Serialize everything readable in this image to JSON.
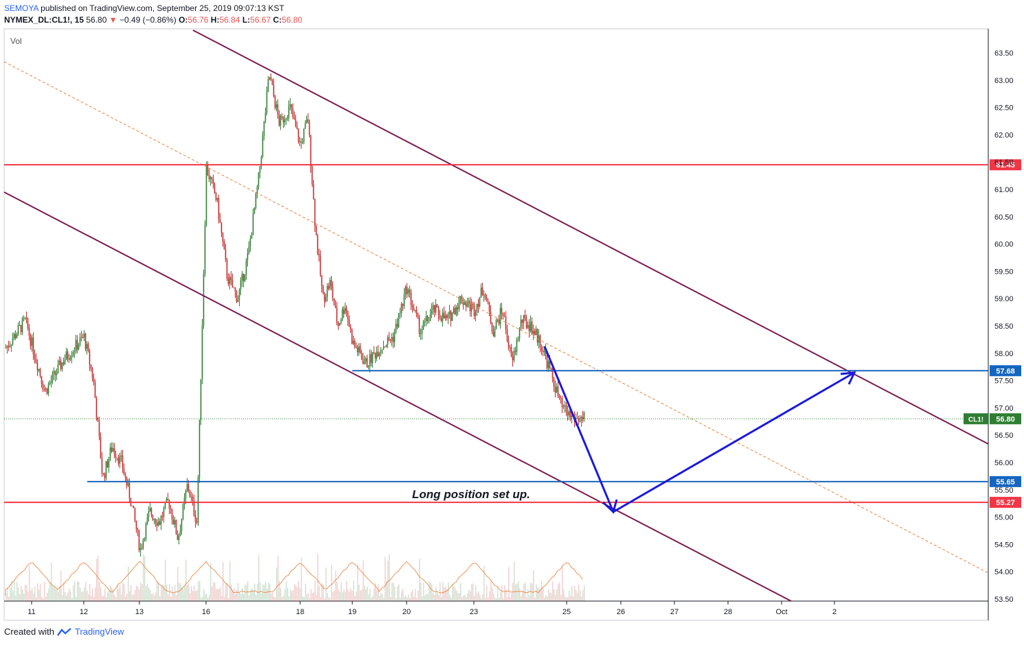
{
  "header": {
    "author": "SEMOYA",
    "published_text": "published on TradingView.com, September 25, 2019 09:07:13 KST",
    "symbol": "NYMEX_DL:CL1!, 15",
    "last": "56.80",
    "change": "−0.49 (−0.86%)",
    "ohlc": {
      "o_label": "O:",
      "o": "56.76",
      "h_label": "H:",
      "h": "56.84",
      "l_label": "L:",
      "l": "56.67",
      "c_label": "C:",
      "c": "56.80"
    }
  },
  "footer": {
    "created_with": "Created with",
    "brand": "TradingView",
    "logo_icon": "tradingview-logo-icon"
  },
  "colors": {
    "channel": "#7b1a4f",
    "support_red": "#f23645",
    "support_blue": "#1565c0",
    "arrow": "#1a1adc",
    "midline": "#e8813b",
    "last_price": "#2e7d32",
    "up": "#2e7d32",
    "down": "#c62828"
  },
  "chart_data": {
    "type": "candlestick",
    "volume_label": "Vol",
    "y_range": [
      53.5,
      63.75
    ],
    "y_ticks": [
      "53.50",
      "54.00",
      "54.50",
      "55.00",
      "55.50",
      "56.00",
      "56.50",
      "57.00",
      "57.50",
      "58.00",
      "58.50",
      "59.00",
      "59.50",
      "60.00",
      "60.50",
      "61.00",
      "61.50",
      "62.00",
      "62.50",
      "63.00",
      "63.50"
    ],
    "x_ticks": [
      "11",
      "12",
      "13",
      "16",
      "18",
      "19",
      "20",
      "23",
      "25",
      "26",
      "27",
      "28",
      "Oct",
      "2"
    ],
    "price_path": [
      [
        "11",
        58.1
      ],
      [
        "11",
        58.6
      ],
      [
        "11",
        57.3
      ],
      [
        "11",
        57.9
      ],
      [
        "12",
        58.3
      ],
      [
        "12",
        57.5
      ],
      [
        "12",
        55.7
      ],
      [
        "12",
        56.3
      ],
      [
        "12",
        56.0
      ],
      [
        "13",
        55.3
      ],
      [
        "13",
        54.4
      ],
      [
        "13",
        55.1
      ],
      [
        "13",
        54.9
      ],
      [
        "13",
        55.3
      ],
      [
        "13",
        54.6
      ],
      [
        "13",
        55.6
      ],
      [
        "13",
        54.9
      ],
      [
        "16",
        61.4
      ],
      [
        "16",
        60.8
      ],
      [
        "16",
        59.4
      ],
      [
        "16",
        59.0
      ],
      [
        "16",
        59.8
      ],
      [
        "16",
        61.2
      ],
      [
        "16",
        63.1
      ],
      [
        "16",
        62.2
      ],
      [
        "16",
        62.5
      ],
      [
        "18",
        61.8
      ],
      [
        "18",
        62.3
      ],
      [
        "18",
        60.3
      ],
      [
        "18",
        59.0
      ],
      [
        "18",
        59.3
      ],
      [
        "18",
        58.5
      ],
      [
        "18",
        58.9
      ],
      [
        "19",
        58.2
      ],
      [
        "19",
        57.8
      ],
      [
        "19",
        58.1
      ],
      [
        "19",
        58.3
      ],
      [
        "20",
        59.2
      ],
      [
        "20",
        58.4
      ],
      [
        "20",
        58.8
      ],
      [
        "20",
        58.6
      ],
      [
        "20",
        59.0
      ],
      [
        "23",
        58.8
      ],
      [
        "23",
        59.2
      ],
      [
        "23",
        58.4
      ],
      [
        "23",
        58.8
      ],
      [
        "23",
        57.8
      ],
      [
        "23",
        58.6
      ],
      [
        "23",
        58.5
      ],
      [
        "23",
        58.2
      ],
      [
        "25",
        57.7
      ],
      [
        "25",
        57.0
      ],
      [
        "25",
        56.8
      ]
    ],
    "horizontal_levels": [
      {
        "price": 61.45,
        "label": "61.45",
        "color": "red"
      },
      {
        "price": 57.68,
        "label": "57.68",
        "color": "blue"
      },
      {
        "price": 55.65,
        "label": "55.65",
        "color": "blue"
      },
      {
        "price": 55.27,
        "label": "55.27",
        "color": "red"
      }
    ],
    "last_price": {
      "symbol": "CL1!",
      "value": "56.80",
      "price": 56.8
    },
    "annotation": "Long position set up."
  }
}
